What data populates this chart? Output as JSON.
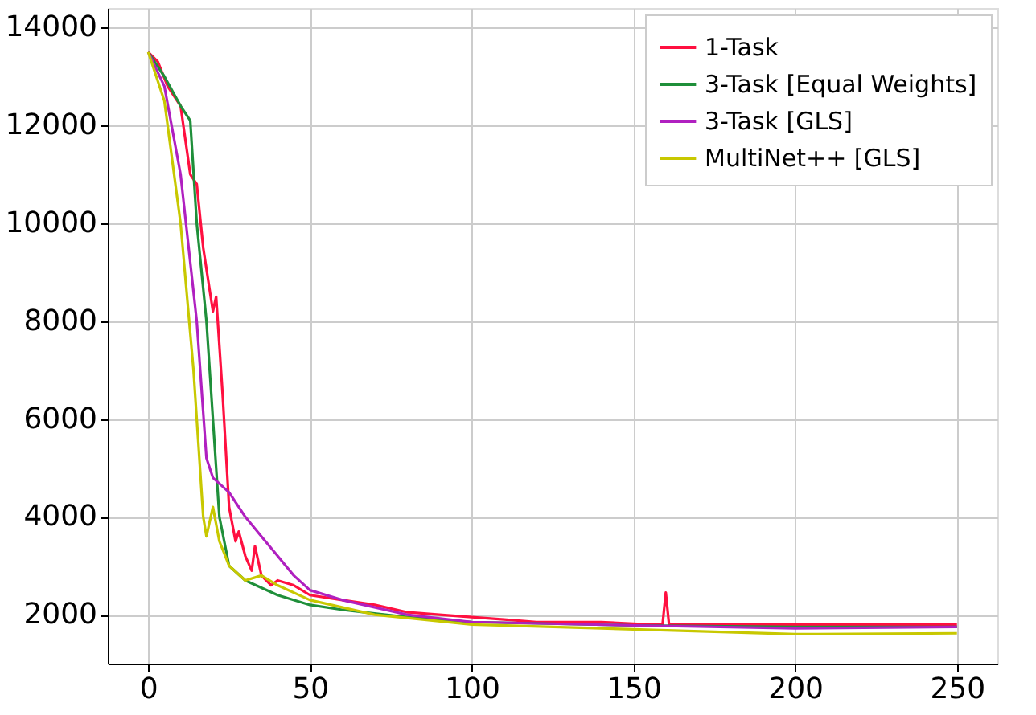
{
  "chart_data": {
    "type": "line",
    "xlim": [
      -12.5,
      262.5
    ],
    "ylim": [
      1000,
      14400
    ],
    "xticks": [
      0,
      50,
      100,
      150,
      200,
      250
    ],
    "yticks": [
      2000,
      4000,
      6000,
      8000,
      10000,
      12000,
      14000
    ],
    "grid": true,
    "legend": "top right",
    "marker": "none",
    "line_style": "solid",
    "series": [
      {
        "name": "1-Task",
        "color": "#ff1040",
        "x": [
          0,
          3,
          6,
          10,
          13,
          15,
          17,
          20,
          21,
          23,
          25,
          27,
          28,
          30,
          32,
          33,
          35,
          38,
          40,
          45,
          50,
          60,
          70,
          80,
          90,
          100,
          110,
          120,
          140,
          155,
          159,
          160,
          161,
          200,
          250
        ],
        "values": [
          13500,
          13300,
          12800,
          12400,
          11000,
          10800,
          9500,
          8200,
          8500,
          6500,
          4200,
          3500,
          3700,
          3200,
          2900,
          3400,
          2800,
          2600,
          2700,
          2600,
          2400,
          2300,
          2200,
          2050,
          2000,
          1950,
          1900,
          1850,
          1850,
          1800,
          1800,
          2450,
          1800,
          1800,
          1800
        ]
      },
      {
        "name": "3-Task [Equal Weights]",
        "color": "#1f8f3a",
        "x": [
          0,
          5,
          10,
          13,
          15,
          18,
          20,
          22,
          25,
          30,
          40,
          50,
          60,
          80,
          100,
          150,
          200,
          250
        ],
        "values": [
          13500,
          13000,
          12400,
          12100,
          10000,
          8000,
          6000,
          4000,
          3000,
          2700,
          2400,
          2200,
          2100,
          1950,
          1850,
          1780,
          1750,
          1750
        ]
      },
      {
        "name": "3-Task [GLS]",
        "color": "#b020c0",
        "x": [
          0,
          5,
          10,
          15,
          18,
          20,
          25,
          30,
          35,
          40,
          45,
          50,
          60,
          80,
          100,
          150,
          200,
          250
        ],
        "values": [
          13500,
          12800,
          11000,
          8000,
          5200,
          4800,
          4500,
          4000,
          3600,
          3200,
          2800,
          2500,
          2300,
          2000,
          1850,
          1780,
          1720,
          1750
        ]
      },
      {
        "name": "MultiNet++  [GLS]",
        "color": "#c8c800",
        "x": [
          0,
          5,
          10,
          14,
          17,
          18,
          20,
          22,
          25,
          30,
          35,
          40,
          50,
          70,
          100,
          150,
          200,
          250
        ],
        "values": [
          13500,
          12500,
          10000,
          7000,
          4000,
          3600,
          4200,
          3500,
          3000,
          2700,
          2800,
          2600,
          2300,
          2000,
          1800,
          1700,
          1600,
          1620
        ]
      }
    ]
  }
}
